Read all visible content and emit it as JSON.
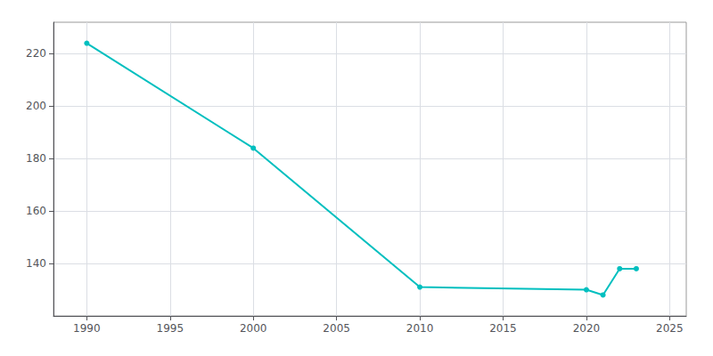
{
  "chart_data": {
    "type": "line",
    "x": [
      1990,
      2000,
      2010,
      2020,
      2021,
      2022,
      2023
    ],
    "values": [
      224,
      184,
      131,
      130,
      128,
      138,
      138
    ],
    "color": "#00BFBF",
    "marker": "circle",
    "xlim": [
      1988,
      2026
    ],
    "xticks": [
      1990,
      1995,
      2000,
      2005,
      2010,
      2015,
      2020,
      2025
    ],
    "ylim": [
      120,
      232
    ],
    "yticks": [
      140,
      160,
      180,
      200,
      220
    ],
    "grid": true
  }
}
